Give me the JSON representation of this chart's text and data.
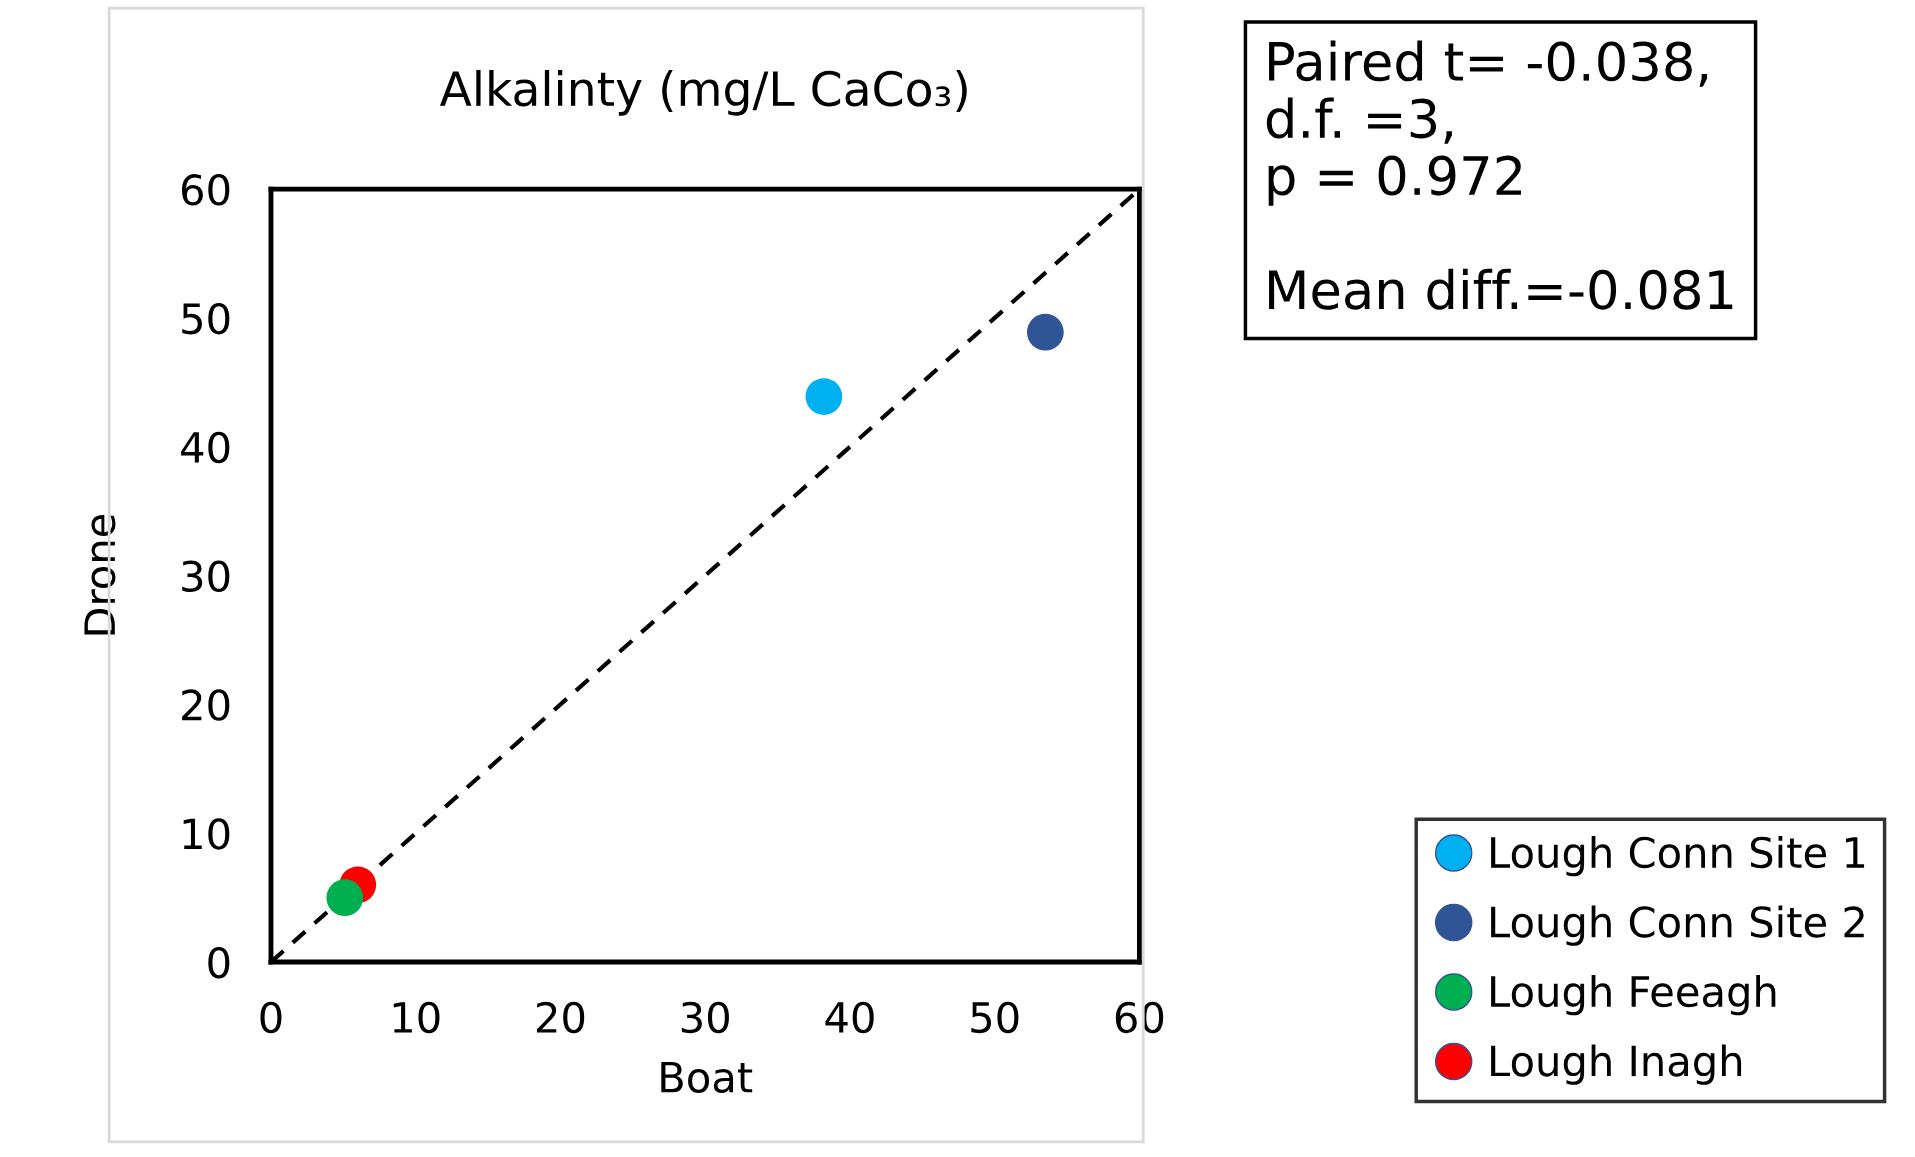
{
  "chart_data": {
    "type": "scatter",
    "title": "Alkalinty (mg/L CaCo₃)",
    "xlabel": "Boat",
    "ylabel": "Drone",
    "xlim": [
      0,
      60
    ],
    "ylim": [
      0,
      60
    ],
    "xticks": [
      0,
      10,
      20,
      30,
      40,
      50,
      60
    ],
    "yticks": [
      0,
      10,
      20,
      30,
      40,
      50,
      60
    ],
    "grid": false,
    "legend": "bottom right",
    "marker": "circle",
    "series": [
      {
        "type": "line",
        "x": [
          0,
          60
        ],
        "values": [
          0,
          60
        ],
        "color": "#000000",
        "line_style": "dashed",
        "marker": "none"
      },
      {
        "name": "Lough Conn Site 1",
        "x": [
          38.2
        ],
        "values": [
          43.9
        ],
        "color": "#00b0f0"
      },
      {
        "name": "Lough Conn Site 2",
        "x": [
          53.5
        ],
        "values": [
          48.9
        ],
        "color": "#2f5597"
      },
      {
        "name": "Lough Feeagh",
        "x": [
          5.1
        ],
        "values": [
          5.0
        ],
        "color": "#00b050"
      },
      {
        "name": "Lough Inagh",
        "x": [
          6.0
        ],
        "values": [
          6.0
        ],
        "color": "#ff0000"
      }
    ],
    "annotations": [
      "Paired t= -0.038,\nd.f. =3,\np = 0.972\n\nMean diff.=-0.081"
    ]
  }
}
